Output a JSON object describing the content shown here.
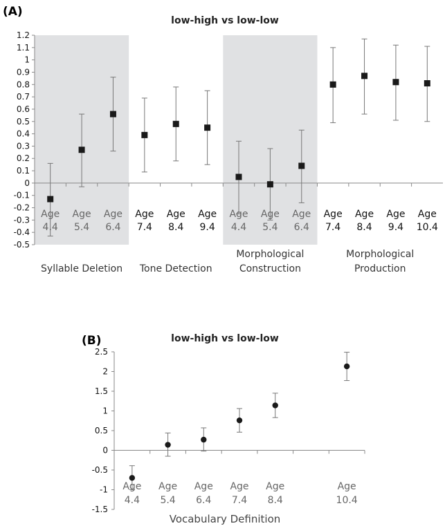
{
  "chart_data": [
    {
      "panel_label": "(A)",
      "type": "scatter",
      "title": "low-high vs low-low",
      "xlabel": "",
      "ylabel": "",
      "ylim": [
        -0.5,
        1.2
      ],
      "yticks": [
        "1.2",
        "1.1",
        "1",
        "0.9",
        "0.8",
        "0.7",
        "0.6",
        "0.5",
        "0.4",
        "0.3",
        "0.2",
        "0.1",
        "0",
        "-0.1",
        "-0.2",
        "-0.3",
        "-0.4",
        "-0.5"
      ],
      "grid": false,
      "marker": "square",
      "groups": [
        {
          "label": "Syllable Deletion",
          "shaded": true,
          "points": [
            {
              "tick": [
                "Age",
                "4.4"
              ],
              "value": -0.13,
              "low": -0.43,
              "high": 0.16
            },
            {
              "tick": [
                "Age",
                "5.4"
              ],
              "value": 0.27,
              "low": -0.03,
              "high": 0.56
            },
            {
              "tick": [
                "Age",
                "6.4"
              ],
              "value": 0.56,
              "low": 0.26,
              "high": 0.86
            }
          ]
        },
        {
          "label": "Tone Detection",
          "shaded": false,
          "points": [
            {
              "tick": [
                "Age",
                "7.4"
              ],
              "value": 0.39,
              "low": 0.09,
              "high": 0.69
            },
            {
              "tick": [
                "Age",
                "8.4"
              ],
              "value": 0.48,
              "low": 0.18,
              "high": 0.78
            },
            {
              "tick": [
                "Age",
                "9.4"
              ],
              "value": 0.45,
              "low": 0.15,
              "high": 0.75
            }
          ]
        },
        {
          "label": "Morphological Construction",
          "label_lines": [
            "Morphological",
            "Construction"
          ],
          "shaded": true,
          "points": [
            {
              "tick": [
                "Age",
                "4.4"
              ],
              "value": 0.05,
              "low": -0.25,
              "high": 0.34
            },
            {
              "tick": [
                "Age",
                "5.4"
              ],
              "value": -0.01,
              "low": -0.3,
              "high": 0.28
            },
            {
              "tick": [
                "Age",
                "6.4"
              ],
              "value": 0.14,
              "low": -0.16,
              "high": 0.43
            }
          ]
        },
        {
          "label": "Morphological Production",
          "label_lines": [
            "Morphological",
            "Production"
          ],
          "shaded": false,
          "points": [
            {
              "tick": [
                "Age",
                "7.4"
              ],
              "value": 0.8,
              "low": 0.49,
              "high": 1.1
            },
            {
              "tick": [
                "Age",
                "8.4"
              ],
              "value": 0.87,
              "low": 0.56,
              "high": 1.17
            },
            {
              "tick": [
                "Age",
                "9.4"
              ],
              "value": 0.82,
              "low": 0.51,
              "high": 1.12
            },
            {
              "tick": [
                "Age",
                "10.4"
              ],
              "value": 0.81,
              "low": 0.5,
              "high": 1.11
            }
          ]
        }
      ],
      "colors": {
        "marker": "#1a1a1a",
        "shade": "#e0e1e3",
        "errorbar": "#777777",
        "axis": "#888888"
      }
    },
    {
      "panel_label": "(B)",
      "type": "scatter",
      "title": "low-high vs low-low",
      "xlabel": "Vocabulary Definition",
      "ylabel": "",
      "ylim": [
        -1.5,
        2.5
      ],
      "yticks": [
        "2.5",
        "2",
        "1.5",
        "1",
        "0.5",
        "0",
        "-0.5",
        "-1",
        "-1.5"
      ],
      "grid": false,
      "marker": "circle",
      "x_slots": 7,
      "points": [
        {
          "slot": 0,
          "tick": [
            "Age",
            "4.4"
          ],
          "value": -0.7,
          "low": -1.0,
          "high": -0.39
        },
        {
          "slot": 1,
          "tick": [
            "Age",
            "5.4"
          ],
          "value": 0.14,
          "low": -0.15,
          "high": 0.44
        },
        {
          "slot": 2,
          "tick": [
            "Age",
            "6.4"
          ],
          "value": 0.27,
          "low": -0.02,
          "high": 0.57
        },
        {
          "slot": 3,
          "tick": [
            "Age",
            "7.4"
          ],
          "value": 0.76,
          "low": 0.46,
          "high": 1.06
        },
        {
          "slot": 4,
          "tick": [
            "Age",
            "8.4"
          ],
          "value": 1.14,
          "low": 0.83,
          "high": 1.45
        },
        {
          "slot": 6,
          "tick": [
            "Age",
            "10.4"
          ],
          "value": 2.13,
          "low": 1.77,
          "high": 2.49
        }
      ],
      "colors": {
        "marker": "#1a1a1a",
        "errorbar": "#777777",
        "axis": "#888888"
      }
    }
  ]
}
